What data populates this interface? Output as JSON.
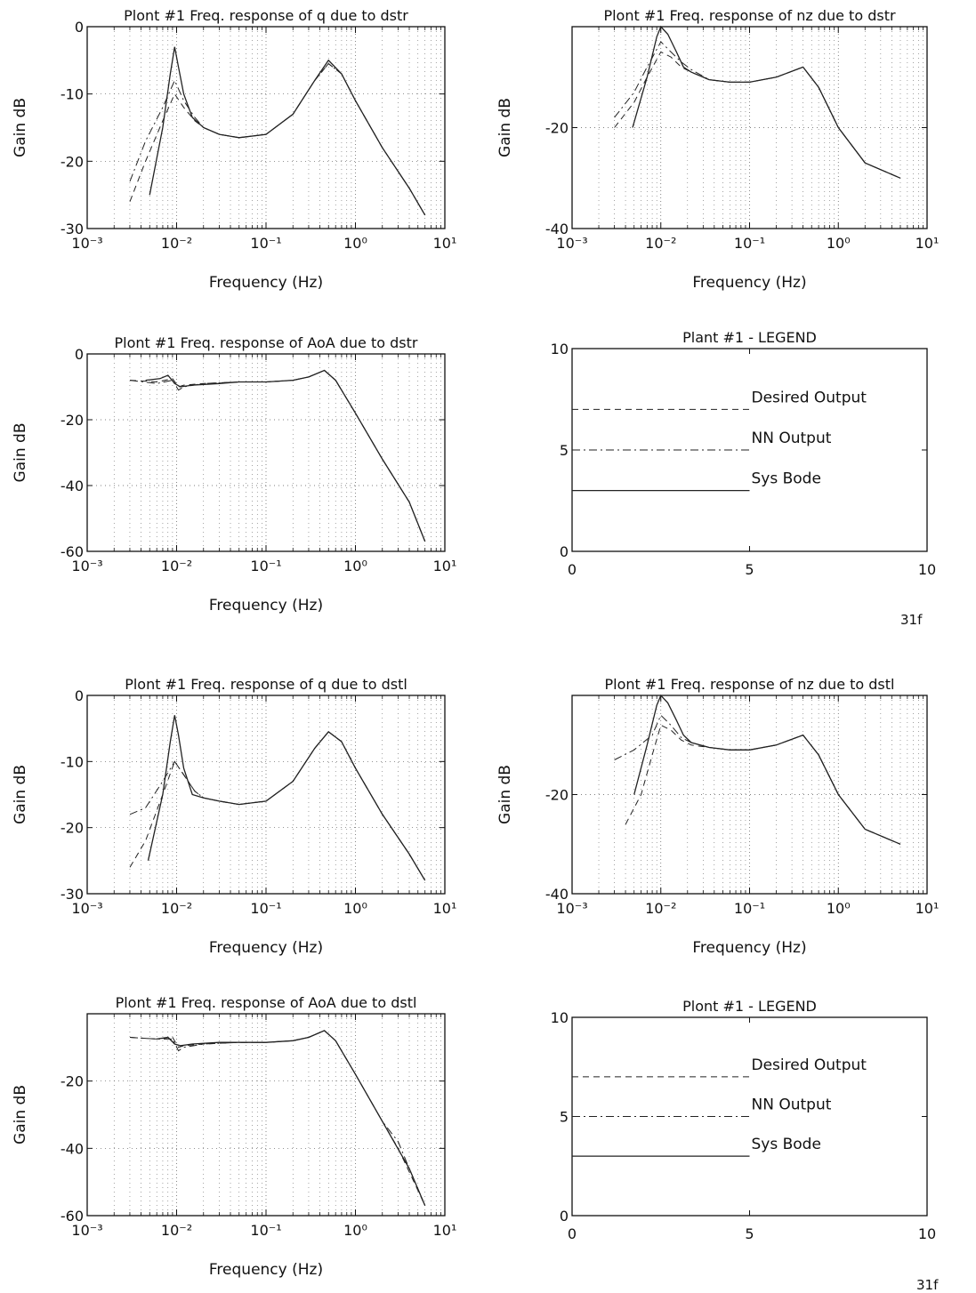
{
  "page": {
    "page_labels": [
      "31f",
      "31f"
    ]
  },
  "chart_data": [
    {
      "type": "line",
      "title": "Plont #1 Freq. response of q due to dstr",
      "xlabel": "Frequency (Hz)",
      "ylabel": "Gain dB",
      "xscale": "log",
      "xlim": [
        0.001,
        10
      ],
      "ylim": [
        -30,
        0
      ],
      "xtick_labels": [
        "10⁻³",
        "10⁻²",
        "10⁻¹",
        "10⁰",
        "10¹"
      ],
      "ytick_labels": [
        "0",
        "-10",
        "-20",
        "-30"
      ],
      "grid": true,
      "series": [
        {
          "name": "Desired Output",
          "style": "dashed",
          "x": [
            0.003,
            0.0045,
            0.007,
            0.0095,
            0.012,
            0.016,
            0.02,
            0.03,
            0.05,
            0.1,
            0.2,
            0.35,
            0.5,
            0.7,
            1,
            2,
            4,
            6
          ],
          "y": [
            -26,
            -20,
            -14,
            -10,
            -12,
            -14,
            -15,
            -16,
            -16.5,
            -16,
            -13,
            -8,
            -5.5,
            -7,
            -11,
            -18,
            -24,
            -28
          ]
        },
        {
          "name": "NN Output",
          "style": "dashdot",
          "x": [
            0.003,
            0.0045,
            0.007,
            0.0095,
            0.012,
            0.016,
            0.02,
            0.03,
            0.05,
            0.1,
            0.2,
            0.35,
            0.5,
            0.7,
            1,
            2,
            4,
            6
          ],
          "y": [
            -23,
            -17,
            -12,
            -8,
            -11,
            -13.5,
            -15,
            -16,
            -16.5,
            -16,
            -13,
            -8,
            -5.5,
            -7,
            -11,
            -18,
            -24,
            -28
          ]
        },
        {
          "name": "Sys Bode",
          "style": "solid",
          "x": [
            0.005,
            0.007,
            0.0085,
            0.0095,
            0.0105,
            0.012,
            0.015,
            0.02,
            0.03,
            0.05,
            0.1,
            0.2,
            0.35,
            0.5,
            0.7,
            1,
            2,
            4,
            6
          ],
          "y": [
            -25,
            -15,
            -7,
            -3,
            -6,
            -10,
            -13.5,
            -15,
            -16,
            -16.5,
            -16,
            -13,
            -8,
            -5,
            -7,
            -11,
            -18,
            -24,
            -28
          ]
        }
      ]
    },
    {
      "type": "line",
      "title": "Plont #1 Freq. response of nz due to dstr",
      "xlabel": "Frequency (Hz)",
      "ylabel": "Gain dB",
      "xscale": "log",
      "xlim": [
        0.001,
        10
      ],
      "ylim": [
        -40,
        0
      ],
      "xtick_labels": [
        "10⁻³",
        "10⁻²",
        "10⁻¹",
        "10⁰",
        "10¹"
      ],
      "ytick_labels": [
        "-20",
        "-40"
      ],
      "grid": true,
      "series": [
        {
          "name": "Desired Output",
          "style": "dashed",
          "x": [
            0.003,
            0.005,
            0.007,
            0.01,
            0.013,
            0.017,
            0.022,
            0.035,
            0.06,
            0.1,
            0.2,
            0.4,
            0.6,
            1,
            2,
            5
          ],
          "y": [
            -20,
            -15,
            -10,
            -5,
            -6,
            -8,
            -9,
            -10.5,
            -11,
            -11,
            -10,
            -8,
            -12,
            -20,
            -27,
            -30
          ]
        },
        {
          "name": "NN Output",
          "style": "dashdot",
          "x": [
            0.003,
            0.005,
            0.007,
            0.01,
            0.013,
            0.017,
            0.022,
            0.035,
            0.06,
            0.1,
            0.2,
            0.4,
            0.6,
            1,
            2,
            5
          ],
          "y": [
            -18,
            -13,
            -8,
            -3,
            -5,
            -7,
            -8.5,
            -10.5,
            -11,
            -11,
            -10,
            -8,
            -12,
            -20,
            -27,
            -30
          ]
        },
        {
          "name": "Sys Bode",
          "style": "solid",
          "x": [
            0.0048,
            0.007,
            0.009,
            0.01,
            0.012,
            0.015,
            0.018,
            0.022,
            0.035,
            0.06,
            0.1,
            0.2,
            0.4,
            0.6,
            1,
            2,
            5
          ],
          "y": [
            -20,
            -10,
            -2,
            0,
            -1.5,
            -5,
            -8,
            -9,
            -10.5,
            -11,
            -11,
            -10,
            -8,
            -12,
            -20,
            -27,
            -30
          ]
        }
      ]
    },
    {
      "type": "line",
      "title": "Plont #1 Freq. response of AoA due to dstr",
      "xlabel": "Frequency (Hz)",
      "ylabel": "Gain dB",
      "xscale": "log",
      "xlim": [
        0.001,
        10
      ],
      "ylim": [
        -60,
        0
      ],
      "xtick_labels": [
        "10⁻³",
        "10⁻²",
        "10⁻¹",
        "10⁰",
        "10¹"
      ],
      "ytick_labels": [
        "0",
        "-20",
        "-40",
        "-60"
      ],
      "grid": true,
      "series": [
        {
          "name": "Desired Output",
          "style": "dashed",
          "x": [
            0.003,
            0.006,
            0.009,
            0.0105,
            0.012,
            0.02,
            0.05,
            0.1,
            0.2,
            0.3,
            0.45,
            0.6,
            1,
            2,
            4,
            6
          ],
          "y": [
            -8,
            -8.5,
            -7.5,
            -10,
            -9.5,
            -9,
            -8.5,
            -8.5,
            -8,
            -7,
            -5,
            -8,
            -18,
            -32,
            -45,
            -57
          ]
        },
        {
          "name": "NN Output",
          "style": "dashdot",
          "x": [
            0.003,
            0.006,
            0.009,
            0.0105,
            0.012,
            0.02,
            0.05,
            0.1,
            0.2,
            0.3,
            0.45,
            0.6,
            1,
            2,
            4,
            6
          ],
          "y": [
            -8,
            -9,
            -8,
            -11,
            -10,
            -9,
            -8.5,
            -8.5,
            -8,
            -7,
            -5,
            -8,
            -18,
            -32,
            -45,
            -57
          ]
        },
        {
          "name": "Sys Bode",
          "style": "solid",
          "x": [
            0.0045,
            0.0065,
            0.008,
            0.0095,
            0.011,
            0.015,
            0.03,
            0.05,
            0.1,
            0.2,
            0.3,
            0.45,
            0.6,
            1,
            2,
            4,
            6
          ],
          "y": [
            -8,
            -7.5,
            -6.5,
            -9,
            -10,
            -9.5,
            -9,
            -8.5,
            -8.5,
            -8,
            -7,
            -5,
            -8,
            -18,
            -32,
            -45,
            -57
          ]
        }
      ]
    },
    {
      "type": "line",
      "title": "Plant #1 - LEGEND",
      "xlim": [
        0,
        10
      ],
      "ylim": [
        0,
        10
      ],
      "xtick_labels": [
        "0",
        "5",
        "10"
      ],
      "ytick_labels": [
        "0",
        "5",
        "10"
      ],
      "grid": false,
      "series": [
        {
          "name": "Desired Output",
          "style": "dashed",
          "x": [
            0,
            5
          ],
          "y": [
            7,
            7
          ]
        },
        {
          "name": "NN Output",
          "style": "dashdot",
          "x": [
            0,
            5
          ],
          "y": [
            5,
            5
          ]
        },
        {
          "name": "Sys Bode",
          "style": "solid",
          "x": [
            0,
            5
          ],
          "y": [
            3,
            3
          ]
        }
      ]
    },
    {
      "type": "line",
      "title": "Plont #1 Freq. response of q due to dstl",
      "xlabel": "Frequency (Hz)",
      "ylabel": "Gain dB",
      "xscale": "log",
      "xlim": [
        0.001,
        10
      ],
      "ylim": [
        -30,
        0
      ],
      "xtick_labels": [
        "10⁻³",
        "10⁻²",
        "10⁻¹",
        "10⁰",
        "10¹"
      ],
      "ytick_labels": [
        "0",
        "-10",
        "-20",
        "-30"
      ],
      "grid": true,
      "series": [
        {
          "name": "Desired Output",
          "style": "dashed",
          "x": [
            0.003,
            0.0045,
            0.007,
            0.0095,
            0.012,
            0.016,
            0.02,
            0.03,
            0.05,
            0.1,
            0.2,
            0.35,
            0.5,
            0.7,
            1,
            2,
            4,
            6
          ],
          "y": [
            -26,
            -22,
            -15,
            -10,
            -12,
            -14.5,
            -15.5,
            -16,
            -16.5,
            -16,
            -13,
            -8,
            -5.5,
            -7,
            -11,
            -18,
            -24,
            -28
          ]
        },
        {
          "name": "NN Output",
          "style": "dashdot",
          "x": [
            0.003,
            0.0045,
            0.007,
            0.0095,
            0.012,
            0.016,
            0.02,
            0.03,
            0.05,
            0.1,
            0.2,
            0.35,
            0.5,
            0.7,
            1,
            2,
            4,
            6
          ],
          "y": [
            -18,
            -17,
            -13,
            -10,
            -12,
            -14.5,
            -15.5,
            -16,
            -16.5,
            -16,
            -13,
            -8,
            -5.5,
            -7,
            -11,
            -18,
            -24,
            -28
          ]
        },
        {
          "name": "Sys Bode",
          "style": "solid",
          "x": [
            0.0048,
            0.007,
            0.0085,
            0.0095,
            0.0105,
            0.012,
            0.015,
            0.02,
            0.03,
            0.05,
            0.1,
            0.2,
            0.35,
            0.5,
            0.7,
            1,
            2,
            4,
            6
          ],
          "y": [
            -25,
            -15,
            -7,
            -3,
            -6,
            -11,
            -15,
            -15.5,
            -16,
            -16.5,
            -16,
            -13,
            -8,
            -5.5,
            -7,
            -11,
            -18,
            -24,
            -28
          ]
        }
      ]
    },
    {
      "type": "line",
      "title": "Plont #1 Freq. response of nz due to dstl",
      "xlabel": "Frequency (Hz)",
      "ylabel": "Gain dB",
      "xscale": "log",
      "xlim": [
        0.001,
        10
      ],
      "ylim": [
        -40,
        0
      ],
      "xtick_labels": [
        "10⁻³",
        "10⁻²",
        "10⁻¹",
        "10⁰",
        "10¹"
      ],
      "ytick_labels": [
        "-20",
        "-40"
      ],
      "grid": true,
      "series": [
        {
          "name": "Desired Output",
          "style": "dashed",
          "x": [
            0.004,
            0.006,
            0.008,
            0.01,
            0.013,
            0.017,
            0.022,
            0.035,
            0.06,
            0.1,
            0.2,
            0.4,
            0.6,
            1,
            2,
            5
          ],
          "y": [
            -26,
            -20,
            -12,
            -6,
            -7,
            -9,
            -10,
            -10.5,
            -11,
            -11,
            -10,
            -8,
            -12,
            -20,
            -27,
            -30
          ]
        },
        {
          "name": "NN Output",
          "style": "dashdot",
          "x": [
            0.003,
            0.005,
            0.008,
            0.01,
            0.013,
            0.017,
            0.022,
            0.035,
            0.06,
            0.1,
            0.2,
            0.4,
            0.6,
            1,
            2,
            5
          ],
          "y": [
            -13,
            -11,
            -8,
            -4,
            -6,
            -8.5,
            -9.5,
            -10.5,
            -11,
            -11,
            -10,
            -8,
            -12,
            -20,
            -27,
            -30
          ]
        },
        {
          "name": "Sys Bode",
          "style": "solid",
          "x": [
            0.005,
            0.007,
            0.009,
            0.01,
            0.012,
            0.015,
            0.018,
            0.022,
            0.035,
            0.06,
            0.1,
            0.2,
            0.4,
            0.6,
            1,
            2,
            5
          ],
          "y": [
            -20,
            -10,
            -2,
            0,
            -1.5,
            -5,
            -8,
            -9.5,
            -10.5,
            -11,
            -11,
            -10,
            -8,
            -12,
            -20,
            -27,
            -30
          ]
        }
      ]
    },
    {
      "type": "line",
      "title": "Plont #1 Freq. response of AoA due to dstl",
      "xlabel": "Frequency (Hz)",
      "ylabel": "Gain dB",
      "xscale": "log",
      "xlim": [
        0.001,
        10
      ],
      "ylim": [
        -60,
        0
      ],
      "xtick_labels": [
        "10⁻³",
        "10⁻²",
        "10⁻¹",
        "10⁰",
        "10¹"
      ],
      "ytick_labels": [
        "-20",
        "-40",
        "-60"
      ],
      "grid": true,
      "series": [
        {
          "name": "Desired Output",
          "style": "dashed",
          "x": [
            0.003,
            0.006,
            0.009,
            0.0105,
            0.012,
            0.02,
            0.05,
            0.1,
            0.2,
            0.3,
            0.45,
            0.6,
            1,
            2,
            3,
            4,
            6
          ],
          "y": [
            -7,
            -7.5,
            -7,
            -10,
            -9.5,
            -9,
            -8.5,
            -8.5,
            -8,
            -7,
            -5,
            -8,
            -18,
            -32,
            -40,
            -47,
            -57
          ]
        },
        {
          "name": "NN Output",
          "style": "dashdot",
          "x": [
            0.003,
            0.006,
            0.009,
            0.0105,
            0.012,
            0.02,
            0.05,
            0.1,
            0.2,
            0.3,
            0.45,
            0.6,
            1,
            2,
            3,
            4,
            6
          ],
          "y": [
            -7,
            -7.5,
            -7.5,
            -11,
            -10,
            -9,
            -8.5,
            -8.5,
            -8,
            -7,
            -5,
            -8,
            -18,
            -32,
            -38,
            -46,
            -57
          ]
        },
        {
          "name": "Sys Bode",
          "style": "solid",
          "x": [
            0.006,
            0.008,
            0.0095,
            0.011,
            0.015,
            0.03,
            0.05,
            0.1,
            0.2,
            0.3,
            0.45,
            0.6,
            1,
            2,
            4,
            6
          ],
          "y": [
            -7.5,
            -7,
            -9,
            -9.5,
            -9,
            -8.5,
            -8.5,
            -8.5,
            -8,
            -7,
            -5,
            -8,
            -18,
            -32,
            -46,
            -57
          ]
        }
      ]
    },
    {
      "type": "line",
      "title": "Plont #1 - LEGEND",
      "xlim": [
        0,
        10
      ],
      "ylim": [
        0,
        10
      ],
      "xtick_labels": [
        "0",
        "5",
        "10"
      ],
      "ytick_labels": [
        "0",
        "5",
        "10"
      ],
      "grid": false,
      "series": [
        {
          "name": "Desired Output",
          "style": "dashed",
          "x": [
            0,
            5
          ],
          "y": [
            7,
            7
          ]
        },
        {
          "name": "NN Output",
          "style": "dashdot",
          "x": [
            0,
            5
          ],
          "y": [
            5,
            5
          ]
        },
        {
          "name": "Sys Bode",
          "style": "solid",
          "x": [
            0,
            5
          ],
          "y": [
            3,
            3
          ]
        }
      ]
    }
  ]
}
